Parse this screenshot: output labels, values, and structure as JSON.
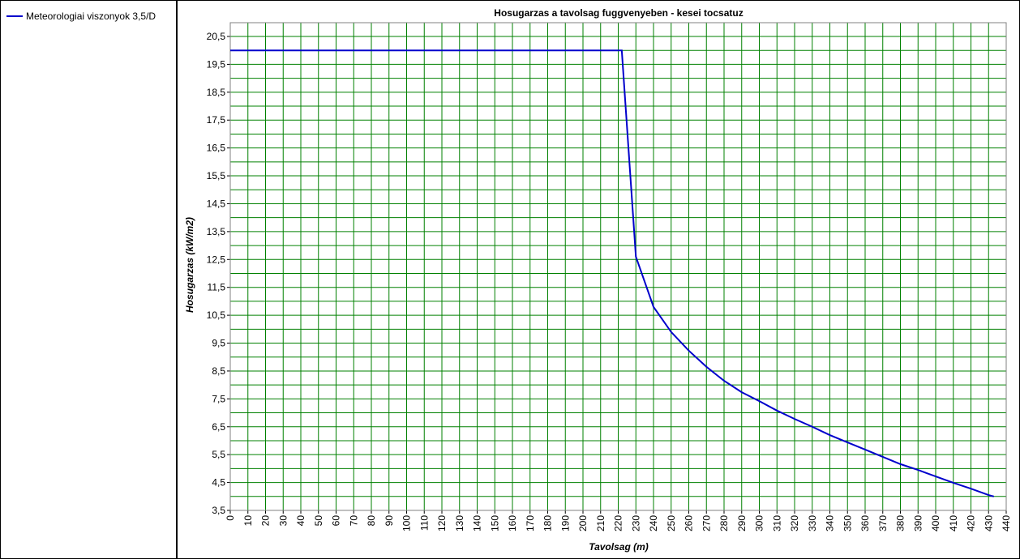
{
  "chart_data": {
    "type": "line",
    "title": "Hosugarzas a tavolsag fuggvenyeben - kesei tocsatuz",
    "x_label": "Tavolsag (m)",
    "y_label": "Hosugarzas (kW/m2)",
    "x": [
      0,
      222,
      230,
      240,
      250,
      260,
      270,
      280,
      290,
      300,
      310,
      320,
      330,
      340,
      350,
      360,
      370,
      380,
      390,
      400,
      410,
      420,
      430,
      433
    ],
    "series": [
      {
        "name": "Meteorologiai viszonyok 3,5/D",
        "color": "#0000cc",
        "values": [
          20,
          20,
          12.6,
          10.8,
          9.9,
          9.23,
          8.65,
          8.15,
          7.74,
          7.42,
          7.08,
          6.78,
          6.5,
          6.2,
          5.94,
          5.68,
          5.42,
          5.16,
          4.95,
          4.72,
          4.49,
          4.28,
          4.05,
          4.0
        ]
      }
    ],
    "xlim": [
      0,
      440
    ],
    "ylim": [
      3.5,
      20.5
    ],
    "xticks": [
      0,
      10,
      20,
      30,
      40,
      50,
      60,
      70,
      80,
      90,
      100,
      110,
      120,
      130,
      140,
      150,
      160,
      170,
      180,
      190,
      200,
      210,
      220,
      230,
      240,
      250,
      260,
      270,
      280,
      290,
      300,
      310,
      320,
      330,
      340,
      350,
      360,
      370,
      380,
      390,
      400,
      410,
      420,
      430,
      440
    ],
    "yticks": [
      {
        "value": 3.5,
        "label": "3,5"
      },
      {
        "value": 4.5,
        "label": "4,5"
      },
      {
        "value": 5.5,
        "label": "5,5"
      },
      {
        "value": 6.5,
        "label": "6,5"
      },
      {
        "value": 7.5,
        "label": "7,5"
      },
      {
        "value": 8.5,
        "label": "8,5"
      },
      {
        "value": 9.5,
        "label": "9,5"
      },
      {
        "value": 10.5,
        "label": "10,5"
      },
      {
        "value": 11.5,
        "label": "11,5"
      },
      {
        "value": 12.5,
        "label": "12,5"
      },
      {
        "value": 13.5,
        "label": "13,5"
      },
      {
        "value": 14.5,
        "label": "14,5"
      },
      {
        "value": 15.5,
        "label": "15,5"
      },
      {
        "value": 16.5,
        "label": "16,5"
      },
      {
        "value": 17.5,
        "label": "17,5"
      },
      {
        "value": 18.5,
        "label": "18,5"
      },
      {
        "value": 19.5,
        "label": "19,5"
      },
      {
        "value": 20.5,
        "label": "20,5"
      }
    ],
    "grid": true,
    "grid_color": "#008000",
    "legend": "left"
  }
}
